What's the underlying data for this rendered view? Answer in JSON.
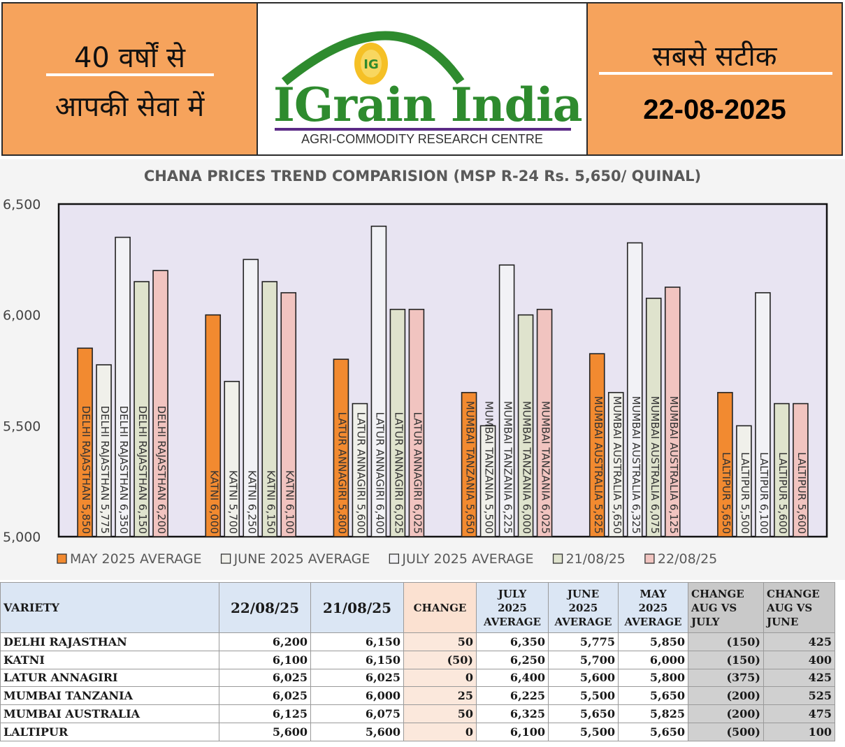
{
  "header": {
    "left_line1": "40 वर्षों से",
    "left_line2": "आपकी सेवा में",
    "right_line1": "सबसे सटीक",
    "right_date": "22-08-2025",
    "logo_badge": "IG",
    "logo_brand": "IGrain India",
    "logo_subtitle": "AGRI-COMMODITY RESEARCH CENTRE",
    "colors": {
      "orange": "#f6a35c",
      "brand_green": "#2e8b2e",
      "brand_purple": "#5b2a86"
    }
  },
  "chart_data": {
    "type": "bar",
    "title": "CHANA PRICES TREND COMPARISION (MSP R-24 Rs. 5,650/ QUINAL)",
    "categories": [
      "DELHI RAJASTHAN",
      "KATNI",
      "LATUR ANNAGIRI",
      "MUMBAI TANZANIA",
      "MUMBAI AUSTRALIA",
      "LALTIPUR"
    ],
    "series": [
      {
        "name": "MAY 2025 AVERAGE",
        "color": "#f28a30",
        "values": [
          5850,
          6000,
          5800,
          5650,
          5825,
          5650
        ]
      },
      {
        "name": "JUNE 2025 AVERAGE",
        "color": "#f0f0ea",
        "values": [
          5775,
          5700,
          5600,
          5500,
          5650,
          5500
        ]
      },
      {
        "name": "JULY 2025 AVERAGE",
        "color": "#f2f2f6",
        "values": [
          6350,
          6250,
          6400,
          6225,
          6325,
          6100
        ]
      },
      {
        "name": "21/08/25",
        "color": "#dfe3cd",
        "values": [
          6150,
          6150,
          6025,
          6000,
          6075,
          5600
        ]
      },
      {
        "name": "22/08/25",
        "color": "#f1c4c0",
        "values": [
          6200,
          6100,
          6025,
          6025,
          6125,
          5600
        ]
      }
    ],
    "y_ticks": [
      "5,000",
      "5,500",
      "6,000",
      "6,500"
    ],
    "ylim": [
      5000,
      6500
    ],
    "grid": false,
    "legend": "bottom",
    "plot_background": "#e8e4f2"
  },
  "table": {
    "headers": {
      "variety": "VARIETY",
      "d22": "22/08/25",
      "d21": "21/08/25",
      "change": "CHANGE",
      "july_l1": "JULY",
      "july_l2": "2025",
      "july_l3": "AVERAGE",
      "june_l1": "JUNE",
      "june_l2": "2025",
      "june_l3": "AVERAGE",
      "may_l1": "MAY",
      "may_l2": "2025",
      "may_l3": "AVERAGE",
      "aug_july_l1": "CHANGE",
      "aug_july_l2": "AUG VS",
      "aug_july_l3": "JULY",
      "aug_june_l1": "CHANGE",
      "aug_june_l2": "AUG VS",
      "aug_june_l3": "JUNE"
    },
    "rows": [
      {
        "variety": "DELHI RAJASTHAN",
        "d22": "6,200",
        "d21": "6,150",
        "change": "50",
        "july": "6,350",
        "june": "5,775",
        "may": "5,850",
        "aug_july": "(150)",
        "aug_june": "425"
      },
      {
        "variety": "KATNI",
        "d22": "6,100",
        "d21": "6,150",
        "change": "(50)",
        "july": "6,250",
        "june": "5,700",
        "may": "6,000",
        "aug_july": "(150)",
        "aug_june": "400"
      },
      {
        "variety": "LATUR ANNAGIRI",
        "d22": "6,025",
        "d21": "6,025",
        "change": "0",
        "july": "6,400",
        "june": "5,600",
        "may": "5,800",
        "aug_july": "(375)",
        "aug_june": "425"
      },
      {
        "variety": "MUMBAI TANZANIA",
        "d22": "6,025",
        "d21": "6,000",
        "change": "25",
        "july": "6,225",
        "june": "5,500",
        "may": "5,650",
        "aug_july": "(200)",
        "aug_june": "525"
      },
      {
        "variety": "MUMBAI AUSTRALIA",
        "d22": "6,125",
        "d21": "6,075",
        "change": "50",
        "july": "6,325",
        "june": "5,650",
        "may": "5,825",
        "aug_july": "(200)",
        "aug_june": "475"
      },
      {
        "variety": "LALTIPUR",
        "d22": "5,600",
        "d21": "5,600",
        "change": "0",
        "july": "6,100",
        "june": "5,500",
        "may": "5,650",
        "aug_july": "(500)",
        "aug_june": "100"
      }
    ]
  }
}
